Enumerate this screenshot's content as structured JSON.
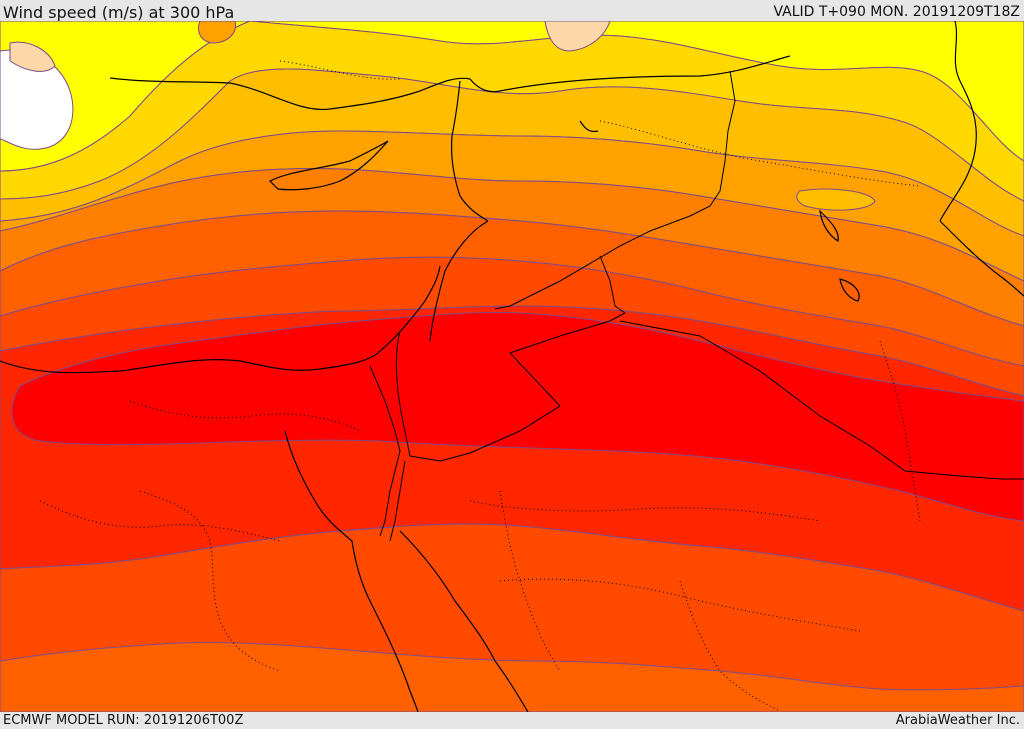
{
  "header": {
    "title": "Wind speed (m/s) at 300 hPa",
    "valid": "VALID T+090 MON. 20191209T18Z"
  },
  "footer": {
    "model_run": "ECMWF MODEL RUN: 20191206T00Z",
    "credit": "ArabiaWeather Inc."
  },
  "map": {
    "type": "filled-contour",
    "field": "wind speed at 300 hPa",
    "palette": {
      "snow": "#ffffff",
      "light": "#fcd8a8",
      "yellow": "#ffff00",
      "yellow_orange": "#ffd800",
      "amber": "#ffbf00",
      "orange": "#ffa200",
      "dark_orange": "#ff7f00",
      "orange_red": "#ff6000",
      "red_orange": "#ff4a00",
      "red": "#ff2600",
      "core": "#ff0000",
      "contour": "#7d4a8a",
      "border": "#000000"
    }
  }
}
